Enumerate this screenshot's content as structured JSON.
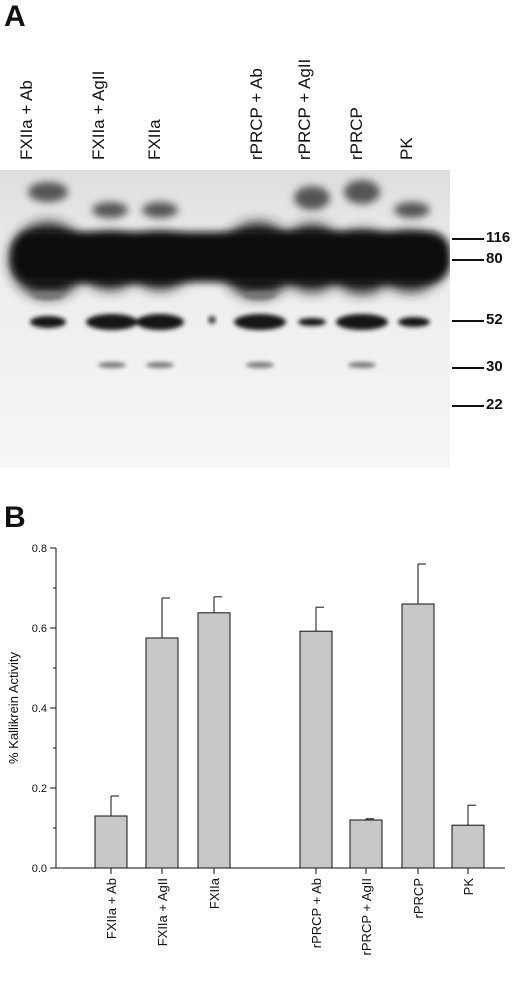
{
  "panel_a": {
    "letter": "A",
    "lanes": [
      {
        "label": "FXIIa + Ab"
      },
      {
        "label": "FXIIa + AgII"
      },
      {
        "label": "FXIIa"
      },
      {
        "label": "rPRCP + Ab"
      },
      {
        "label": "rPRCP + AgII"
      },
      {
        "label": "rPRCP"
      },
      {
        "label": "PK"
      }
    ],
    "markers": [
      "116",
      "80",
      "52",
      "30",
      "22"
    ]
  },
  "panel_b": {
    "letter": "B"
  },
  "chart_data": {
    "type": "bar",
    "categories": [
      "FXIIa + Ab",
      "FXIIa + AgII",
      "FXIIa",
      "rPRCP + Ab",
      "rPRCP + AgII",
      "rPRCP",
      "PK"
    ],
    "values": [
      0.13,
      0.575,
      0.638,
      0.592,
      0.12,
      0.66,
      0.107
    ],
    "errors": [
      0.05,
      0.1,
      0.04,
      0.06,
      0.003,
      0.1,
      0.05
    ],
    "ylabel": "% Kallikrein Activity",
    "xlabel": "",
    "ylim": [
      0.0,
      0.8
    ],
    "yticks": [
      "0.0",
      "0.2",
      "0.4",
      "0.6",
      "0.8"
    ],
    "bar_color": "#c8c8c8"
  }
}
